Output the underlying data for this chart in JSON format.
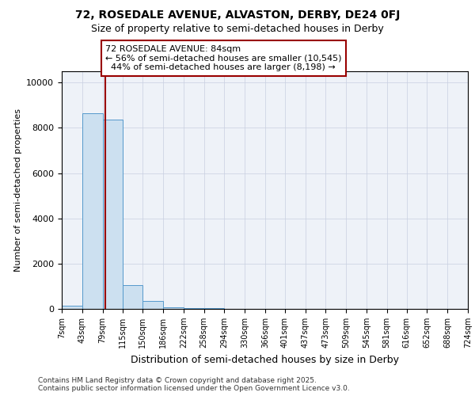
{
  "title_line1": "72, ROSEDALE AVENUE, ALVASTON, DERBY, DE24 0FJ",
  "title_line2": "Size of property relative to semi-detached houses in Derby",
  "xlabel": "Distribution of semi-detached houses by size in Derby",
  "ylabel": "Number of semi-detached properties",
  "footer_line1": "Contains HM Land Registry data © Crown copyright and database right 2025.",
  "footer_line2": "Contains public sector information licensed under the Open Government Licence v3.0.",
  "property_size": 84,
  "property_label": "72 ROSEDALE AVENUE: 84sqm",
  "pct_smaller": 56,
  "pct_larger": 44,
  "count_smaller": 10545,
  "count_larger": 8198,
  "bin_edges": [
    7,
    43,
    79,
    115,
    150,
    186,
    222,
    258,
    294,
    330,
    366,
    401,
    437,
    473,
    509,
    545,
    581,
    616,
    652,
    688,
    724
  ],
  "bin_counts": [
    150,
    8650,
    8350,
    1050,
    350,
    80,
    30,
    20,
    15,
    10,
    8,
    5,
    4,
    3,
    2,
    2,
    1,
    1,
    1,
    1
  ],
  "bar_color": "#cce0f0",
  "bar_edge_color": "#5599cc",
  "vline_color": "#990000",
  "annotation_box_color": "#990000",
  "ylim": [
    0,
    10500
  ],
  "yticks": [
    0,
    2000,
    4000,
    6000,
    8000,
    10000
  ],
  "annot_fontsize": 8.0,
  "title1_fontsize": 10,
  "title2_fontsize": 9,
  "ylabel_fontsize": 8,
  "xlabel_fontsize": 9,
  "footer_fontsize": 6.5
}
